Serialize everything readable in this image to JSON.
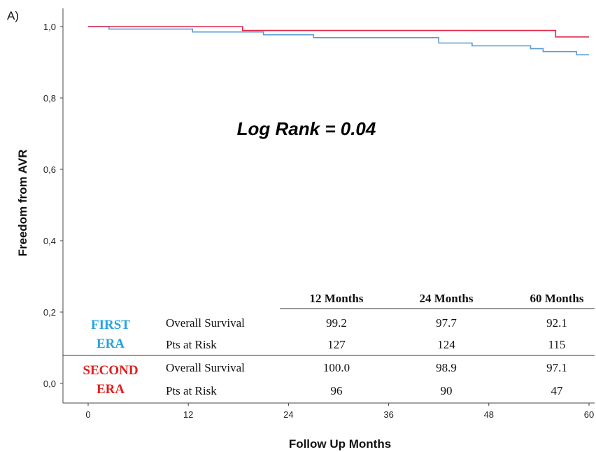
{
  "chart_data": {
    "type": "line",
    "panel_label": "A)",
    "xlabel": "Follow Up Months",
    "ylabel": "Freedom from AVR",
    "xlim": [
      0,
      60
    ],
    "ylim": [
      0,
      1
    ],
    "x_ticks": [
      "0",
      "12",
      "24",
      "36",
      "48",
      "60"
    ],
    "y_ticks": [
      "0,0",
      "0,2",
      "0,4",
      "0,6",
      "0,8",
      "1,0"
    ],
    "annotation": "Log Rank = 0.04",
    "series": [
      {
        "name": "FIRST ERA",
        "color": "#5b9bd5",
        "steps": [
          [
            0,
            1.0
          ],
          [
            2.5,
            0.993
          ],
          [
            12.5,
            0.985
          ],
          [
            21,
            0.977
          ],
          [
            27,
            0.969
          ],
          [
            42,
            0.954
          ],
          [
            46,
            0.946
          ],
          [
            53,
            0.938
          ],
          [
            54.5,
            0.93
          ],
          [
            58.5,
            0.921
          ],
          [
            60,
            0.921
          ]
        ]
      },
      {
        "name": "SECOND ERA",
        "color": "#e0294a",
        "steps": [
          [
            0,
            1.0
          ],
          [
            18.5,
            0.989
          ],
          [
            56,
            0.971
          ],
          [
            60,
            0.971
          ]
        ]
      }
    ],
    "table": {
      "headers": [
        "12 Months",
        "24 Months",
        "60 Months"
      ],
      "groups": [
        {
          "name_line1": "FIRST",
          "name_line2": "ERA",
          "color": "#29a3dd",
          "rows": [
            {
              "label": "Overall Survival",
              "values": [
                "99.2",
                "97.7",
                "92.1"
              ]
            },
            {
              "label": "Pts at Risk",
              "values": [
                "127",
                "124",
                "115"
              ]
            }
          ]
        },
        {
          "name_line1": "SECOND",
          "name_line2": "ERA",
          "color": "#e02020",
          "rows": [
            {
              "label": "Overall Survival",
              "values": [
                "100.0",
                "98.9",
                "97.1"
              ]
            },
            {
              "label": "Pts at Risk",
              "values": [
                "96",
                "90",
                "47"
              ]
            }
          ]
        }
      ]
    }
  }
}
